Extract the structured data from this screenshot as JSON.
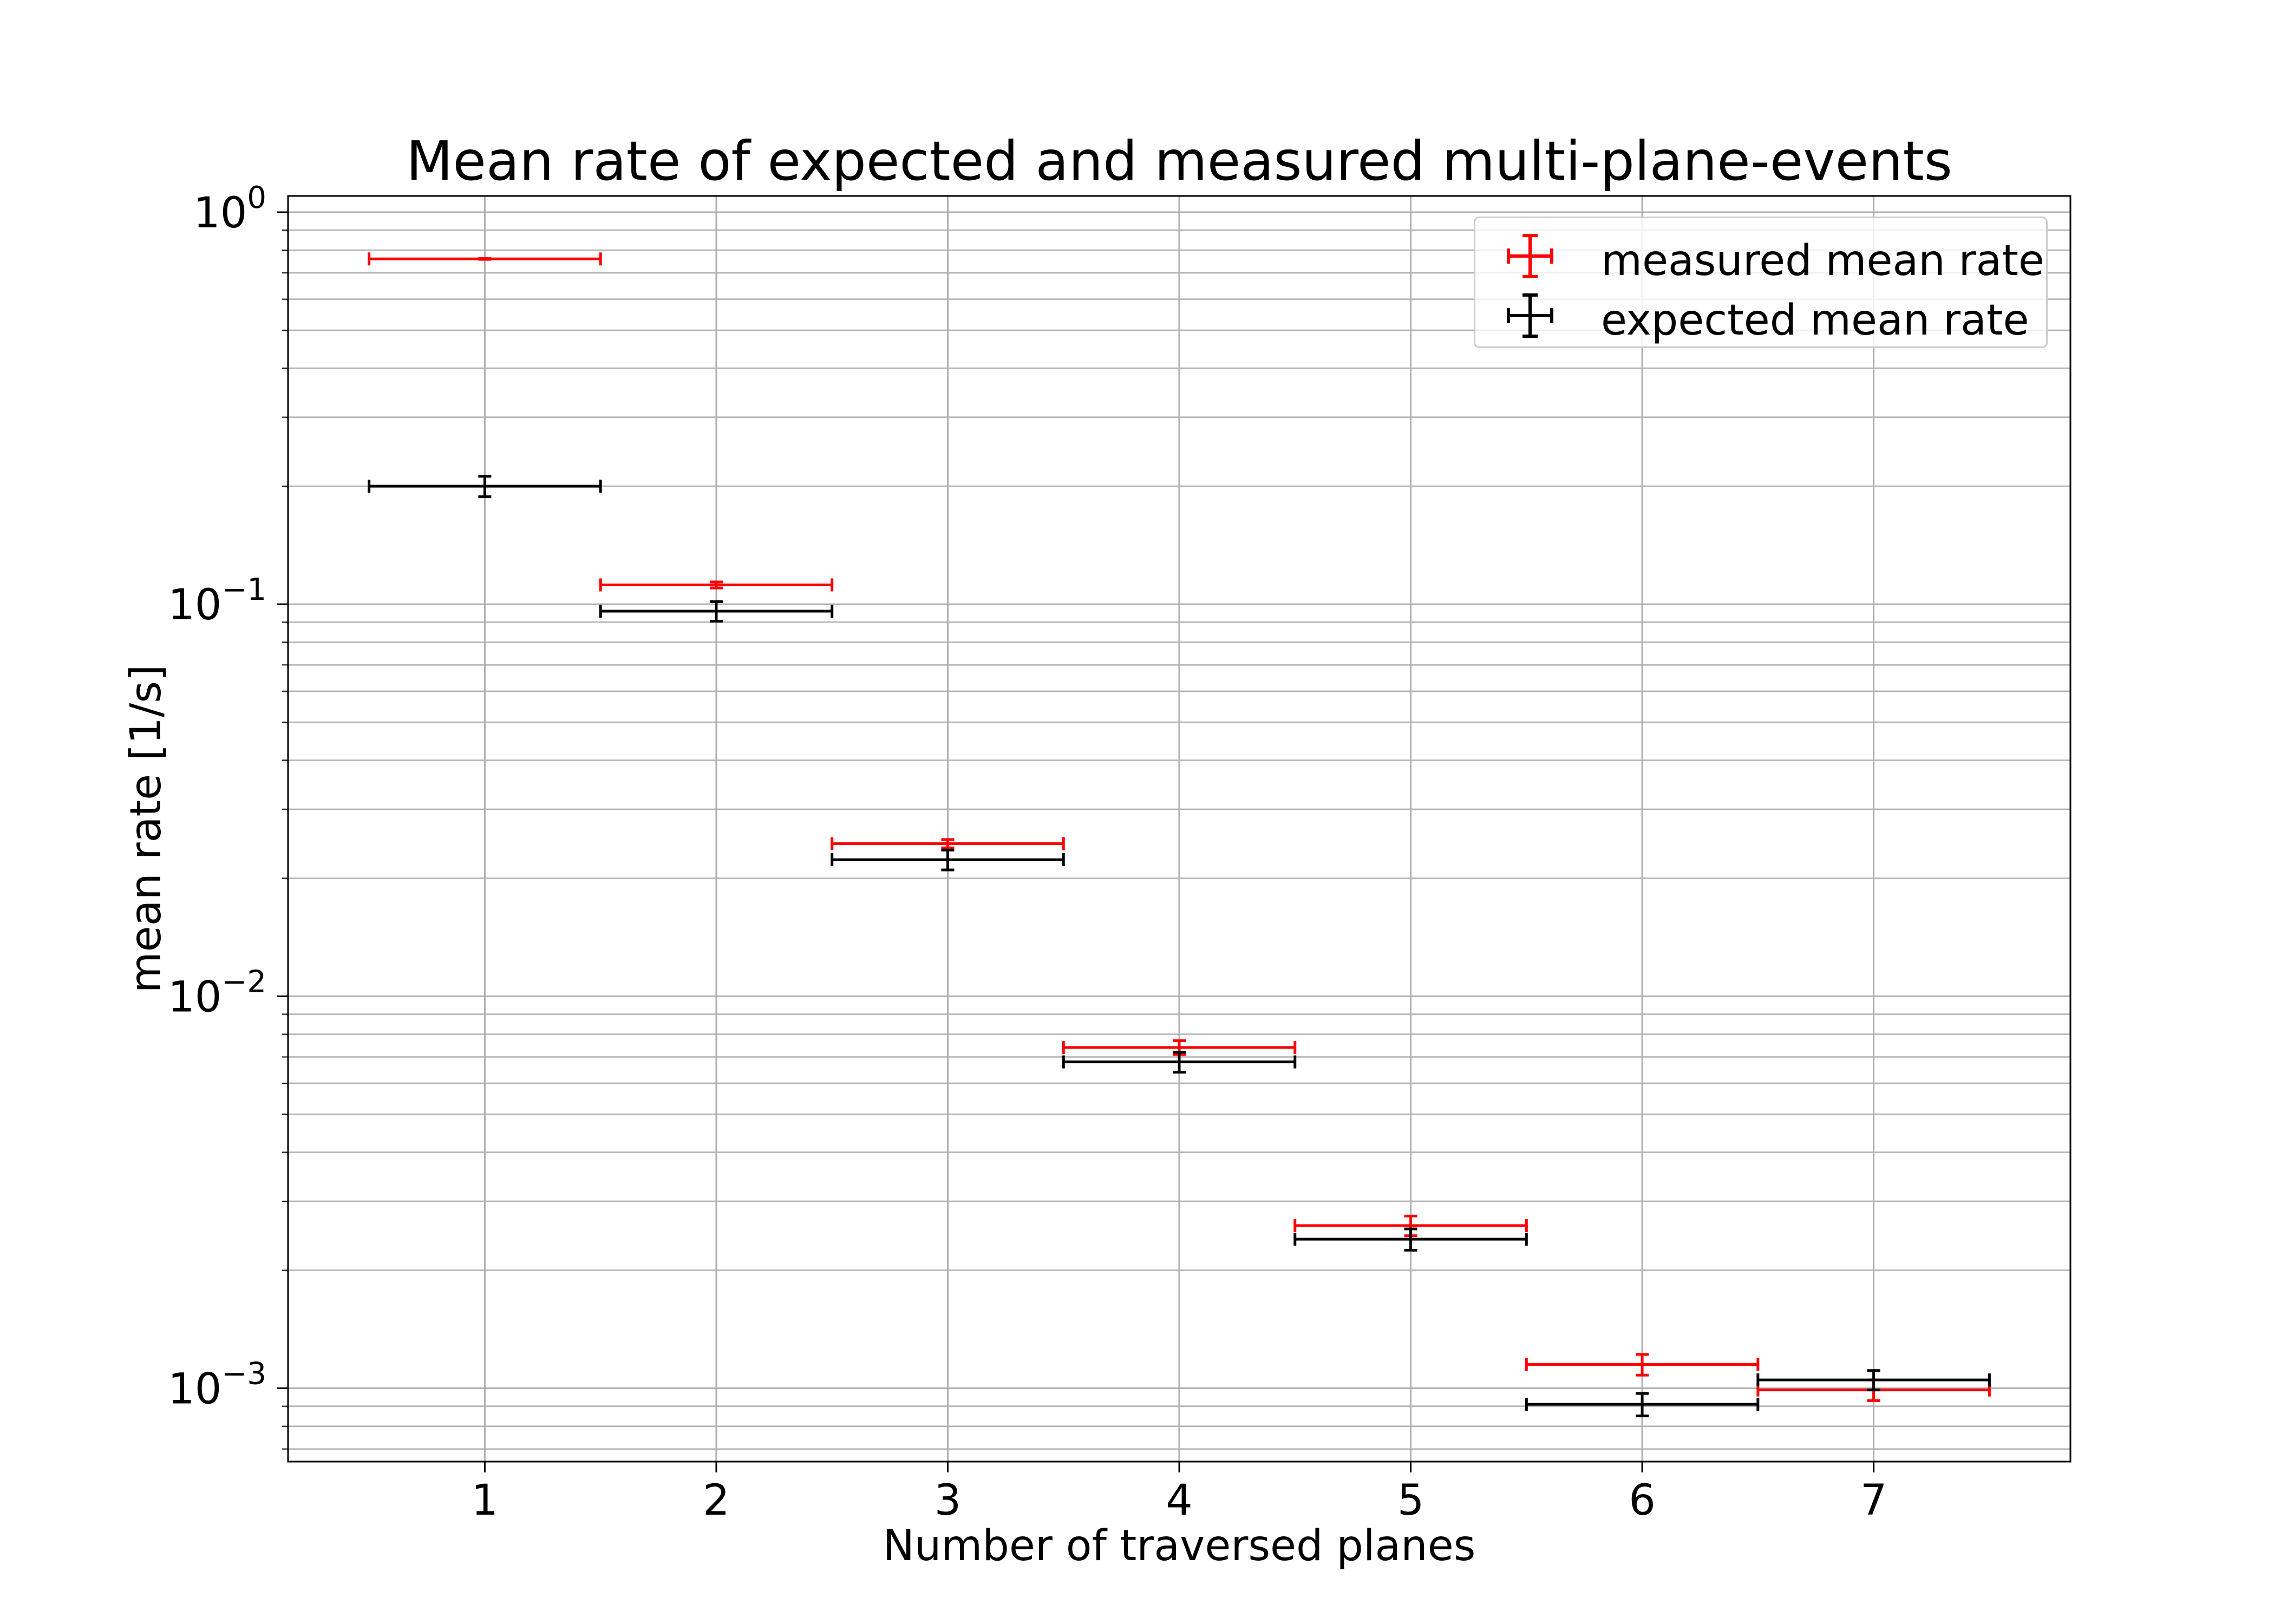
{
  "chart_data": {
    "type": "scatter",
    "title": "Mean rate of expected and measured multi-plane-events",
    "xlabel": "Number of traversed planes",
    "ylabel": "mean rate [1/s]",
    "yscale": "log",
    "xlim": [
      0.15,
      7.85
    ],
    "ylim": [
      0.00065,
      1.1
    ],
    "x_ticks": [
      1,
      2,
      3,
      4,
      5,
      6,
      7
    ],
    "y_ticks": [
      {
        "value": 1,
        "base": "10",
        "exp": "0"
      },
      {
        "value": 0.1,
        "base": "10",
        "exp": "−1"
      },
      {
        "value": 0.01,
        "base": "10",
        "exp": "−2"
      },
      {
        "value": 0.001,
        "base": "10",
        "exp": "−3"
      }
    ],
    "grid": true,
    "legend_position": "top-right",
    "series": [
      {
        "name": "measured mean rate",
        "color": "#ff0000",
        "x": [
          1,
          2,
          3,
          4,
          5,
          6,
          7
        ],
        "y": [
          0.76,
          0.112,
          0.0245,
          0.0074,
          0.0026,
          0.00115,
          0.00099
        ],
        "xerr": [
          0.5,
          0.5,
          0.5,
          0.5,
          0.5,
          0.5,
          0.5
        ],
        "yerr": [
          0.002,
          0.002,
          0.0006,
          0.0003,
          0.00015,
          7e-05,
          6e-05
        ]
      },
      {
        "name": "expected mean rate",
        "color": "#000000",
        "x": [
          1,
          2,
          3,
          4,
          5,
          6,
          7
        ],
        "y": [
          0.2,
          0.096,
          0.0223,
          0.0068,
          0.0024,
          0.00091,
          0.00105
        ],
        "xerr": [
          0.5,
          0.5,
          0.5,
          0.5,
          0.5,
          0.5,
          0.5
        ],
        "yerr": [
          0.012,
          0.0055,
          0.0013,
          0.0004,
          0.00015,
          6e-05,
          6e-05
        ]
      }
    ]
  }
}
